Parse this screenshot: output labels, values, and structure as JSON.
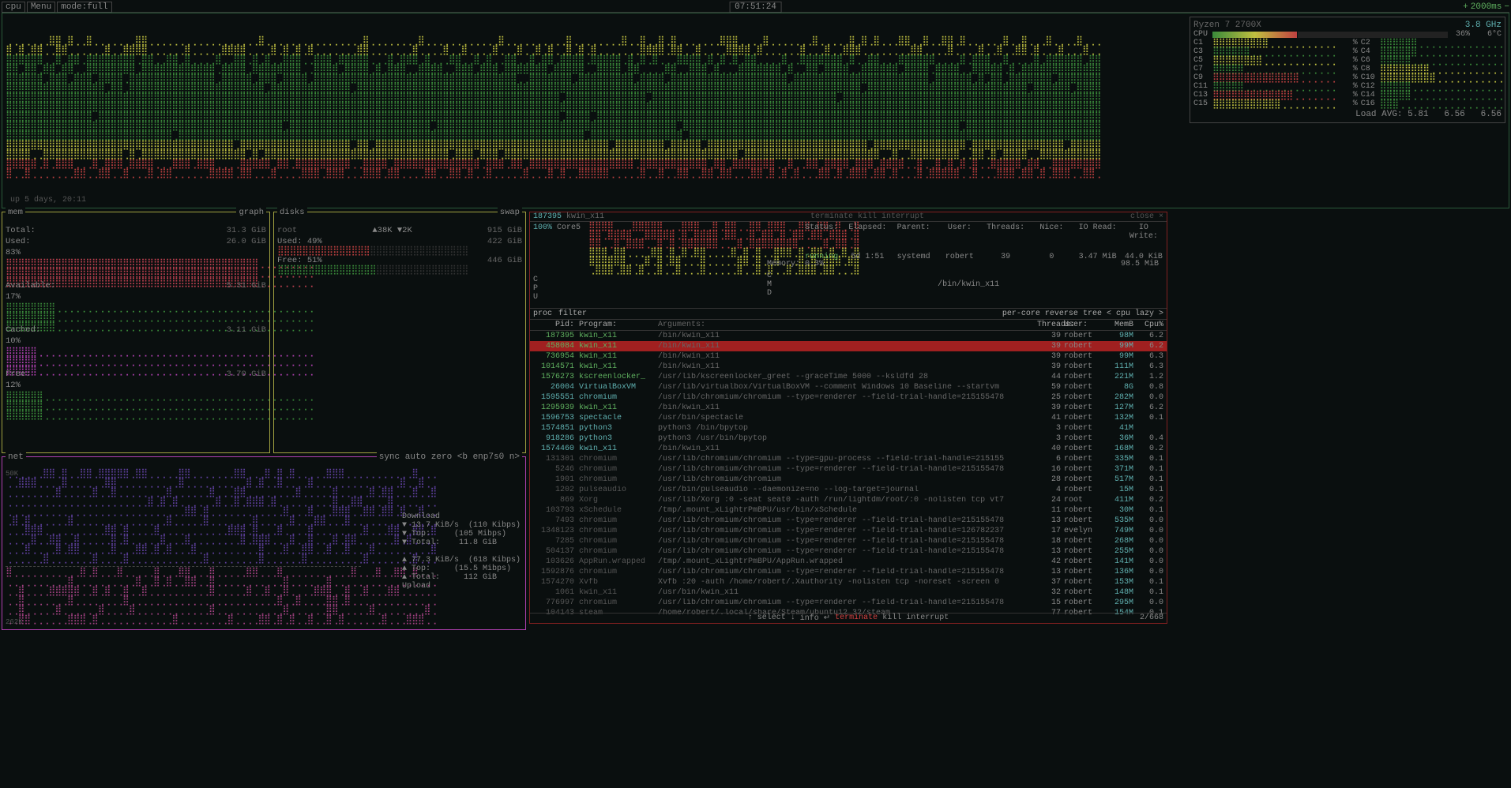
{
  "topbar": {
    "cpu": "cpu",
    "menu": "Menu",
    "mode": "mode:full",
    "clock": "07:51:24",
    "update": "2000ms"
  },
  "cpu": {
    "model": "Ryzen 7 2700X",
    "freq": "3.8 GHz",
    "total_pct": "36%",
    "temp": "6°C",
    "cores": [
      {
        "id": "C1",
        "pct": "%"
      },
      {
        "id": "C2",
        "pct": "%"
      },
      {
        "id": "C3",
        "pct": "%"
      },
      {
        "id": "C4",
        "pct": "%"
      },
      {
        "id": "C5",
        "pct": "%"
      },
      {
        "id": "C6",
        "pct": "%"
      },
      {
        "id": "C7",
        "pct": "%"
      },
      {
        "id": "C8",
        "pct": "%"
      },
      {
        "id": "C9",
        "pct": "%"
      },
      {
        "id": "C10",
        "pct": "%"
      },
      {
        "id": "C11",
        "pct": "%"
      },
      {
        "id": "C12",
        "pct": "%"
      },
      {
        "id": "C13",
        "pct": "%"
      },
      {
        "id": "C14",
        "pct": "%"
      },
      {
        "id": "C15",
        "pct": "%"
      },
      {
        "id": "C16",
        "pct": "%"
      }
    ],
    "load_avg_label": "Load AVG:",
    "load_avg": [
      "5.81",
      "6.56",
      "6.56"
    ],
    "uptime": "up 5 days, 20:11",
    "colors": {
      "low": "#3a8a3a",
      "mid": "#c0c040",
      "high": "#c04040"
    }
  },
  "mem": {
    "title": "mem",
    "graph_label": "graph",
    "total_label": "Total:",
    "total": "31.3 GiB",
    "used_label": "Used:",
    "used": "26.0 GiB",
    "used_pct": "83%",
    "avail_label": "Available:",
    "avail": "5.31 GiB",
    "avail_pct": "17%",
    "cached_label": "Cached:",
    "cached": "3.11 GiB",
    "cached_pct": "10%",
    "free_label": "Free:",
    "free": "3.70 GiB",
    "free_pct": "12%",
    "colors": {
      "used": "#c04050",
      "avail": "#3a8a3a",
      "cached": "#b040b0",
      "free": "#3a8a3a"
    }
  },
  "disks": {
    "title": "disks",
    "swap_label": "swap",
    "root_label": "root",
    "root_io": "▲38K ▼2K",
    "root_total": "915 GiB",
    "used_label": "Used:",
    "used_pct": "49%",
    "used": "422 GiB",
    "free_label": "Free:",
    "free_pct": "51%",
    "free": "446 GiB"
  },
  "net": {
    "title": "net",
    "buttons": [
      "sync",
      "auto",
      "zero"
    ],
    "iface": "<b enp7s0 n>",
    "scale_top": "50K",
    "scale_bot": "262K",
    "download_label": "Download",
    "dl_rate": "13.7 KiB/s",
    "dl_rate2": "(110 Kibps)",
    "dl_top_label": "▼ Top:",
    "dl_top": "(105 Mibps)",
    "dl_total_label": "▼ Total:",
    "dl_total": "11.8 GiB",
    "upload_label": "Upload",
    "ul_rate": "77.3 KiB/s",
    "ul_rate2": "(618 Kibps)",
    "ul_top_label": "▲ Top:",
    "ul_top": "(15.5 Mibps)",
    "ul_total_label": "▲ Total:",
    "ul_total": "112 GiB"
  },
  "proc": {
    "header_pid": "187395",
    "header_prog": "kwin_x11",
    "header_actions": [
      "terminate",
      "kill",
      "interrupt",
      "close ×"
    ],
    "detail_labels": {
      "status": "Status:",
      "elapsed": "Elapsed:",
      "parent": "Parent:",
      "user": "User:",
      "threads": "Threads:",
      "nice": "Nice:",
      "io_read": "IO Read:",
      "io_write": "IO Write:"
    },
    "detail": {
      "status": "running",
      "elapsed": "5d 1:51",
      "parent": "systemd",
      "user": "robert",
      "threads": "39",
      "nice": "0",
      "io_read": "3.47 MiB",
      "io_write": "44.0 KiB"
    },
    "mem_label": "Memory: 0.3%",
    "mem_val": "98.5 MiB",
    "cmd_label": "C",
    "cmd": "/bin/kwin_x11",
    "pct": "100%",
    "core": "Core5",
    "tabs": [
      "proc",
      "filter",
      "per-core",
      "reverse",
      "tree"
    ],
    "sort": "< cpu lazy >",
    "th": {
      "pid": "Pid:",
      "prog": "Program:",
      "arg": "Arguments:",
      "thr": "Threads:",
      "user": "User:",
      "memb": "MemB",
      "cpu": "Cpu%"
    },
    "rows": [
      {
        "pid": "187395",
        "prog": "kwin_x11",
        "arg": "/bin/kwin_x11",
        "thr": "39",
        "user": "robert",
        "memb": "98M",
        "cpu": "6.2",
        "c": "g"
      },
      {
        "pid": "458084",
        "prog": "kwin_x11",
        "arg": "/bin/kwin_x11",
        "thr": "39",
        "user": "robert",
        "memb": "99M",
        "cpu": "6.2",
        "c": "g",
        "sel": true
      },
      {
        "pid": "736954",
        "prog": "kwin_x11",
        "arg": "/bin/kwin_x11",
        "thr": "39",
        "user": "robert",
        "memb": "99M",
        "cpu": "6.3",
        "c": "g"
      },
      {
        "pid": "1014571",
        "prog": "kwin_x11",
        "arg": "/bin/kwin_x11",
        "thr": "39",
        "user": "robert",
        "memb": "111M",
        "cpu": "6.3",
        "c": "g"
      },
      {
        "pid": "1576273",
        "prog": "kscreenlocker_",
        "arg": "/usr/lib/kscreenlocker_greet --graceTime 5000 --ksldfd 28",
        "thr": "44",
        "user": "robert",
        "memb": "221M",
        "cpu": "1.2",
        "c": "g"
      },
      {
        "pid": "26004",
        "prog": "VirtualBoxVM",
        "arg": "/usr/lib/virtualbox/VirtualBoxVM --comment Windows 10 Baseline --startvm",
        "thr": "59",
        "user": "robert",
        "memb": "8G",
        "cpu": "0.8",
        "c": "c"
      },
      {
        "pid": "1595551",
        "prog": "chromium",
        "arg": "/usr/lib/chromium/chromium --type=renderer --field-trial-handle=215155478",
        "thr": "25",
        "user": "robert",
        "memb": "282M",
        "cpu": "0.0",
        "c": "c"
      },
      {
        "pid": "1295939",
        "prog": "kwin_x11",
        "arg": "/bin/kwin_x11",
        "thr": "39",
        "user": "robert",
        "memb": "127M",
        "cpu": "6.2",
        "c": "g"
      },
      {
        "pid": "1596753",
        "prog": "spectacle",
        "arg": "/usr/bin/spectacle",
        "thr": "41",
        "user": "robert",
        "memb": "132M",
        "cpu": "0.1",
        "c": "c"
      },
      {
        "pid": "1574851",
        "prog": "python3",
        "arg": "python3 /bin/bpytop",
        "thr": "3",
        "user": "robert",
        "memb": "41M",
        "cpu": "",
        "c": "c"
      },
      {
        "pid": "918286",
        "prog": "python3",
        "arg": "python3 /usr/bin/bpytop",
        "thr": "3",
        "user": "robert",
        "memb": "36M",
        "cpu": "0.4",
        "c": "c"
      },
      {
        "pid": "1574460",
        "prog": "kwin_x11",
        "arg": "/bin/kwin_x11",
        "thr": "40",
        "user": "robert",
        "memb": "168M",
        "cpu": "0.2",
        "c": "c"
      },
      {
        "pid": "131301",
        "prog": "chromium",
        "arg": "/usr/lib/chromium/chromium --type=gpu-process --field-trial-handle=215155",
        "thr": "6",
        "user": "robert",
        "memb": "335M",
        "cpu": "0.1",
        "c": "d"
      },
      {
        "pid": "5246",
        "prog": "chromium",
        "arg": "/usr/lib/chromium/chromium --type=renderer --field-trial-handle=215155478",
        "thr": "16",
        "user": "robert",
        "memb": "371M",
        "cpu": "0.1",
        "c": "d"
      },
      {
        "pid": "1901",
        "prog": "chromium",
        "arg": "/usr/lib/chromium/chromium",
        "thr": "28",
        "user": "robert",
        "memb": "517M",
        "cpu": "0.1",
        "c": "d"
      },
      {
        "pid": "1202",
        "prog": "pulseaudio",
        "arg": "/usr/bin/pulseaudio --daemonize=no --log-target=journal",
        "thr": "4",
        "user": "robert",
        "memb": "15M",
        "cpu": "0.1",
        "c": "d"
      },
      {
        "pid": "869",
        "prog": "Xorg",
        "arg": "/usr/lib/Xorg :0 -seat seat0 -auth /run/lightdm/root/:0 -nolisten tcp vt7",
        "thr": "24",
        "user": "root",
        "memb": "411M",
        "cpu": "0.2",
        "c": "d"
      },
      {
        "pid": "103793",
        "prog": "xSchedule",
        "arg": "/tmp/.mount_xLightrPmBPU/usr/bin/xSchedule",
        "thr": "11",
        "user": "robert",
        "memb": "30M",
        "cpu": "0.1",
        "c": "d"
      },
      {
        "pid": "7493",
        "prog": "chromium",
        "arg": "/usr/lib/chromium/chromium --type=renderer --field-trial-handle=215155478",
        "thr": "13",
        "user": "robert",
        "memb": "535M",
        "cpu": "0.0",
        "c": "d"
      },
      {
        "pid": "1348123",
        "prog": "chromium",
        "arg": "/usr/lib/chromium/chromium --type=renderer --field-trial-handle=126782237",
        "thr": "17",
        "user": "evelyn",
        "memb": "749M",
        "cpu": "0.0",
        "c": "d"
      },
      {
        "pid": "7285",
        "prog": "chromium",
        "arg": "/usr/lib/chromium/chromium --type=renderer --field-trial-handle=215155478",
        "thr": "18",
        "user": "robert",
        "memb": "268M",
        "cpu": "0.0",
        "c": "d"
      },
      {
        "pid": "504137",
        "prog": "chromium",
        "arg": "/usr/lib/chromium/chromium --type=renderer --field-trial-handle=215155478",
        "thr": "13",
        "user": "robert",
        "memb": "255M",
        "cpu": "0.0",
        "c": "d"
      },
      {
        "pid": "103626",
        "prog": "AppRun.wrapped",
        "arg": "/tmp/.mount_xLightrPmBPU/AppRun.wrapped",
        "thr": "42",
        "user": "robert",
        "memb": "141M",
        "cpu": "0.0",
        "c": "d"
      },
      {
        "pid": "1592876",
        "prog": "chromium",
        "arg": "/usr/lib/chromium/chromium --type=renderer --field-trial-handle=215155478",
        "thr": "13",
        "user": "robert",
        "memb": "136M",
        "cpu": "0.0",
        "c": "d"
      },
      {
        "pid": "1574270",
        "prog": "Xvfb",
        "arg": "Xvfb :20 -auth /home/robert/.Xauthority -nolisten tcp -noreset -screen 0",
        "thr": "37",
        "user": "robert",
        "memb": "153M",
        "cpu": "0.1",
        "c": "d"
      },
      {
        "pid": "1061",
        "prog": "kwin_x11",
        "arg": "/usr/bin/kwin_x11",
        "thr": "32",
        "user": "robert",
        "memb": "148M",
        "cpu": "0.1",
        "c": "d"
      },
      {
        "pid": "776997",
        "prog": "chromium",
        "arg": "/usr/lib/chromium/chromium --type=renderer --field-trial-handle=215155478",
        "thr": "15",
        "user": "robert",
        "memb": "295M",
        "cpu": "0.0",
        "c": "d"
      },
      {
        "pid": "104143",
        "prog": "steam",
        "arg": "/home/robert/.local/share/Steam/ubuntu12_32/steam",
        "thr": "77",
        "user": "robert",
        "memb": "154M",
        "cpu": "0.1",
        "c": "d"
      }
    ],
    "footer": [
      "↑ select ↓",
      "info ↵",
      "terminate",
      "kill",
      "interrupt"
    ],
    "count": "2/668"
  }
}
